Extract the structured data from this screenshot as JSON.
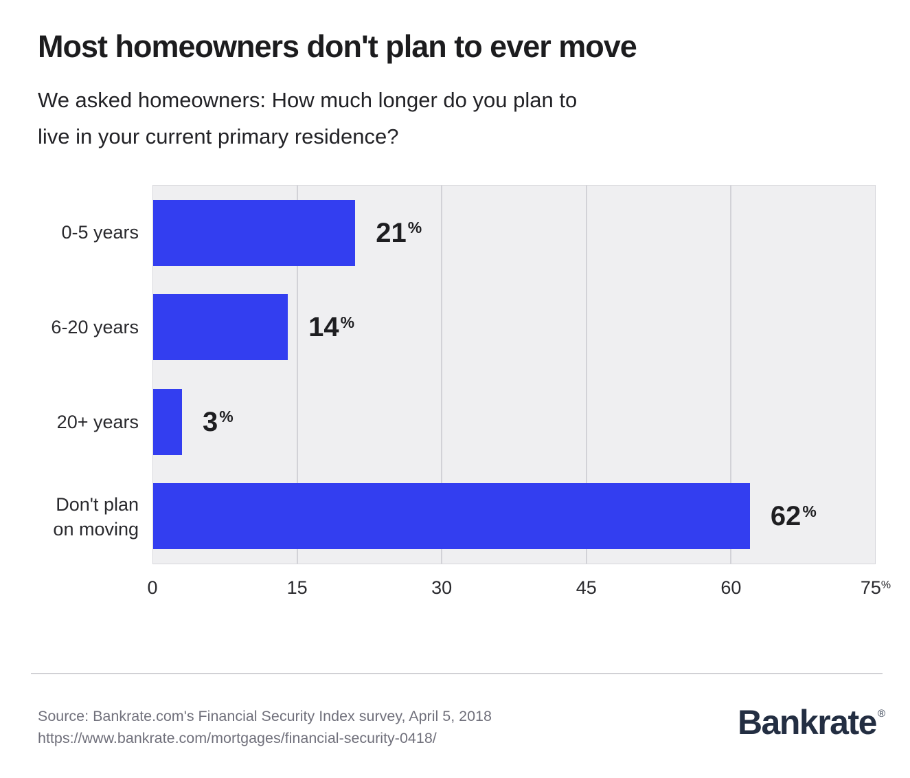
{
  "header": {
    "title": "Most homeowners don't plan to ever move",
    "subtitle_lines": [
      "We asked homeowners: How much longer do you plan to",
      "live in your current primary residence?"
    ]
  },
  "chart_data": {
    "type": "bar",
    "orientation": "horizontal",
    "title": "Most homeowners don't plan to ever move",
    "categories": [
      "0-5 years",
      "6-20 years",
      "20+ years",
      "Don't plan on moving"
    ],
    "category_display": [
      "0-5 years",
      "6-20 years",
      "20+ years",
      "Don't plan\non moving"
    ],
    "values": [
      21,
      14,
      3,
      62
    ],
    "unit": "%",
    "xlabel": "",
    "ylabel": "",
    "xlim": [
      0,
      75
    ],
    "x_ticks": [
      0,
      15,
      30,
      45,
      60,
      75
    ],
    "x_tick_labels": [
      "0",
      "15",
      "30",
      "45",
      "60",
      "75%"
    ],
    "grid": true,
    "legend": "none",
    "bar_color": "#333ef0",
    "plot_background": "#efeff1",
    "gridline_color": "#d2d2d7"
  },
  "footer": {
    "source_lines": [
      "Source: Bankrate.com's Financial Security Index survey, April 5, 2018",
      "https://www.bankrate.com/mortgages/financial-security-0418/"
    ],
    "logo_text": "Bankrate",
    "logo_registered": "®"
  },
  "colors": {
    "title_text": "#1c1c1e",
    "body_text": "#29292d",
    "value_text": "#1e1e21",
    "footer_text": "#70707b",
    "logo_navy": "#232e42",
    "divider": "#d1d1d5"
  }
}
